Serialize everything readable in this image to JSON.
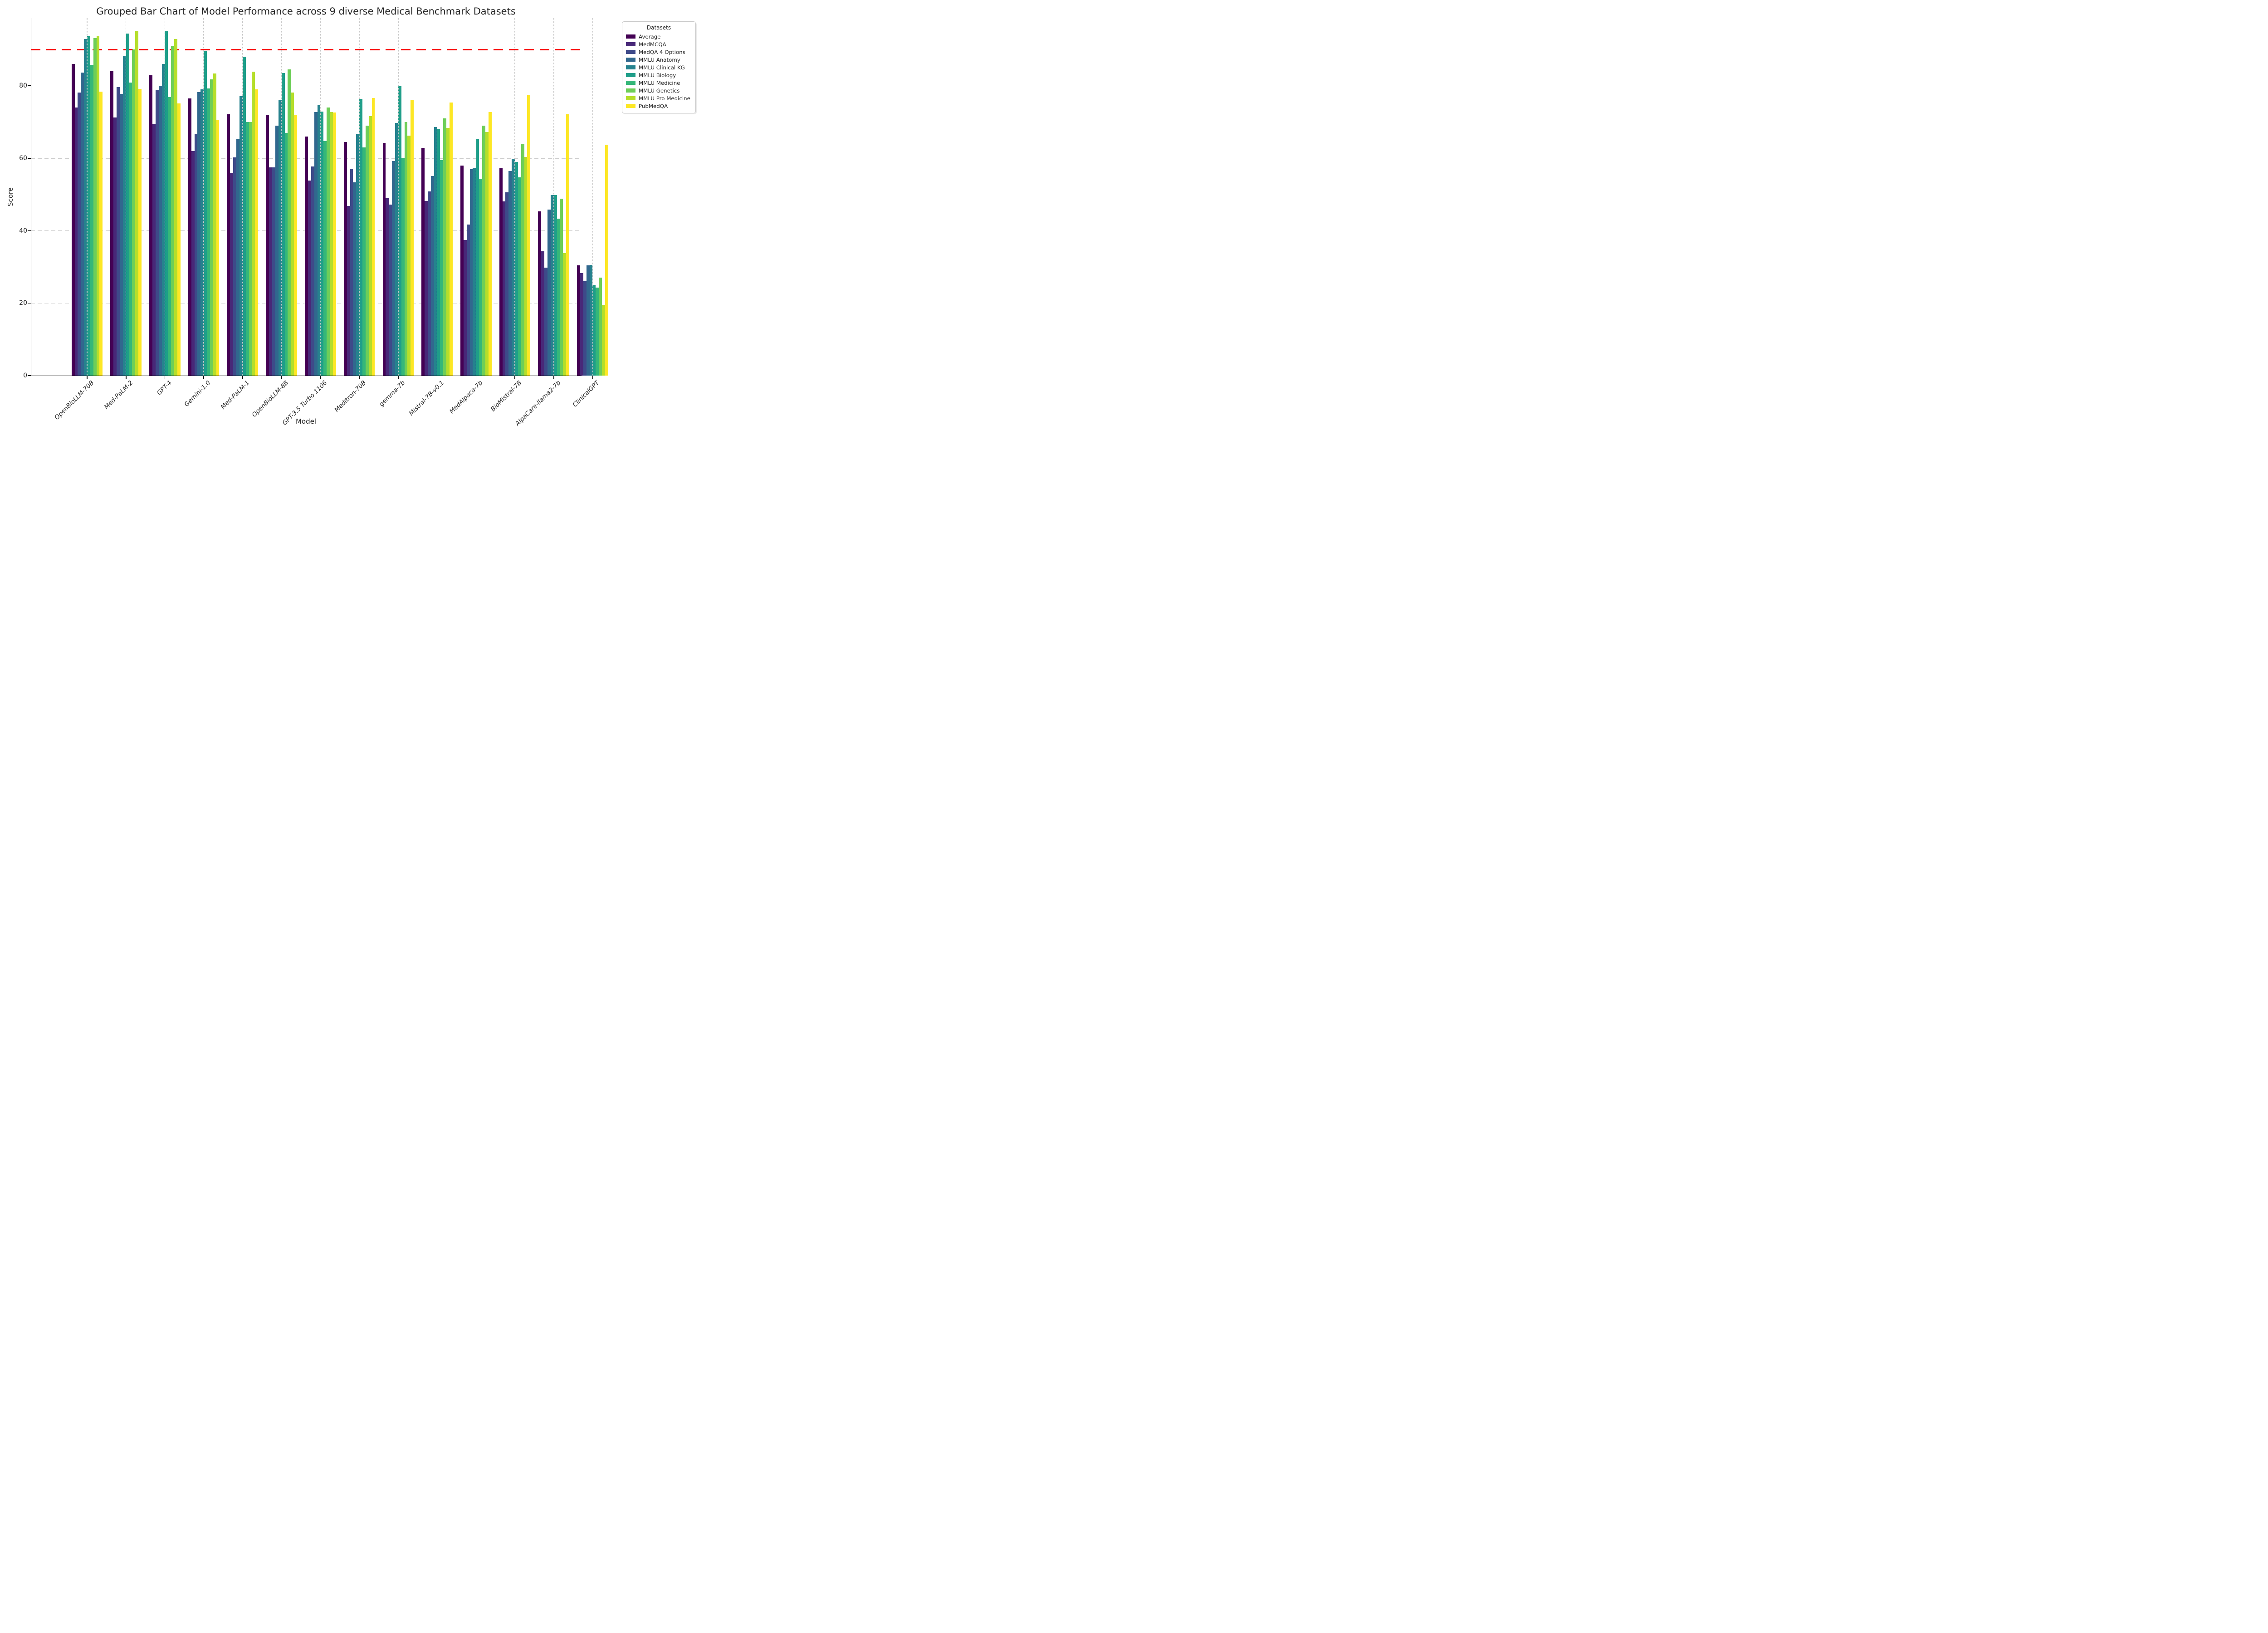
{
  "title": "Grouped Bar Chart of Model Performance across 9 diverse Medical Benchmark Datasets",
  "axes": {
    "x_label": "Model",
    "y_label": "Score",
    "y_ticks": [
      0,
      20,
      40,
      60,
      80
    ],
    "y_max": 98.7
  },
  "reference_line": {
    "value": 90,
    "color": "#f80f0f",
    "style": "dashed"
  },
  "legend": {
    "title": "Datasets",
    "position": "upper right outside"
  },
  "chart_data": {
    "type": "bar",
    "title": "Grouped Bar Chart of Model Performance across 9 diverse Medical Benchmark Datasets",
    "xlabel": "Model",
    "ylabel": "Score",
    "ylim": [
      0,
      98.7
    ],
    "grid": "dashed",
    "legend_position": "top-right outside",
    "reference_line_y": 90,
    "categories": [
      "OpenBioLLM-70B",
      "Med-PaLM-2",
      "GPT-4",
      "Gemini-1.0",
      "Med-PaLM-1",
      "OpenBioLLM-8B",
      "GPT-3.5 Turbo 1106",
      "Meditron-70B",
      "gemma-7b",
      "Mistral-7B-v0.1",
      "MedAlpaca-7b",
      "BioMistral-7B",
      "AlpaCare-llama2-7b",
      "ClinicalGPT"
    ],
    "series": [
      {
        "name": "Average",
        "color": "#440154",
        "values": [
          86.1,
          84.1,
          82.9,
          76.5,
          72.1,
          72.0,
          66.0,
          64.5,
          64.2,
          62.9,
          58.0,
          57.3,
          45.4,
          30.5
        ]
      },
      {
        "name": "MedMCQA",
        "color": "#482878",
        "values": [
          74.0,
          71.3,
          69.5,
          62.0,
          56.0,
          57.5,
          53.8,
          46.9,
          49.0,
          48.2,
          37.5,
          48.1,
          34.3,
          28.3
        ]
      },
      {
        "name": "MedQA 4 Options",
        "color": "#3e4a89",
        "values": [
          78.2,
          79.7,
          78.9,
          66.7,
          60.2,
          57.5,
          57.7,
          57.1,
          47.2,
          50.8,
          41.7,
          50.6,
          29.8,
          26.0
        ]
      },
      {
        "name": "MMLU Anatomy",
        "color": "#31688e",
        "values": [
          83.7,
          77.8,
          80.0,
          78.3,
          65.3,
          69.0,
          72.8,
          53.3,
          59.3,
          55.1,
          57.0,
          56.5,
          45.9,
          30.4
        ]
      },
      {
        "name": "MMLU Clinical KG",
        "color": "#26828e",
        "values": [
          92.9,
          88.3,
          86.0,
          79.0,
          77.1,
          76.1,
          74.7,
          66.8,
          69.8,
          68.7,
          57.4,
          59.9,
          49.8,
          30.6
        ]
      },
      {
        "name": "MMLU Biology",
        "color": "#1f9e89",
        "values": [
          93.8,
          94.4,
          95.1,
          89.6,
          88.0,
          83.5,
          72.9,
          76.4,
          79.9,
          68.1,
          65.3,
          59.0,
          49.9,
          25.0
        ]
      },
      {
        "name": "MMLU Medicine",
        "color": "#35b779",
        "values": [
          85.8,
          80.9,
          76.9,
          79.3,
          70.0,
          67.0,
          64.7,
          63.0,
          60.1,
          59.5,
          54.3,
          54.7,
          43.4,
          24.3
        ]
      },
      {
        "name": "MMLU Genetics",
        "color": "#6ece58",
        "values": [
          93.2,
          90.0,
          91.0,
          81.8,
          70.0,
          84.5,
          74.0,
          69.0,
          70.0,
          71.0,
          69.0,
          64.0,
          48.9,
          27.0
        ]
      },
      {
        "name": "MMLU Pro Medicine",
        "color": "#b5de2b",
        "values": [
          93.7,
          95.2,
          93.0,
          83.4,
          83.9,
          78.2,
          72.8,
          71.7,
          66.2,
          68.4,
          67.3,
          60.4,
          33.8,
          19.5
        ]
      },
      {
        "name": "PubMedQA",
        "color": "#fde725",
        "values": [
          78.4,
          79.2,
          75.2,
          70.7,
          79.0,
          72.0,
          72.7,
          76.6,
          76.2,
          75.4,
          72.8,
          77.5,
          72.2,
          63.8
        ]
      }
    ]
  }
}
